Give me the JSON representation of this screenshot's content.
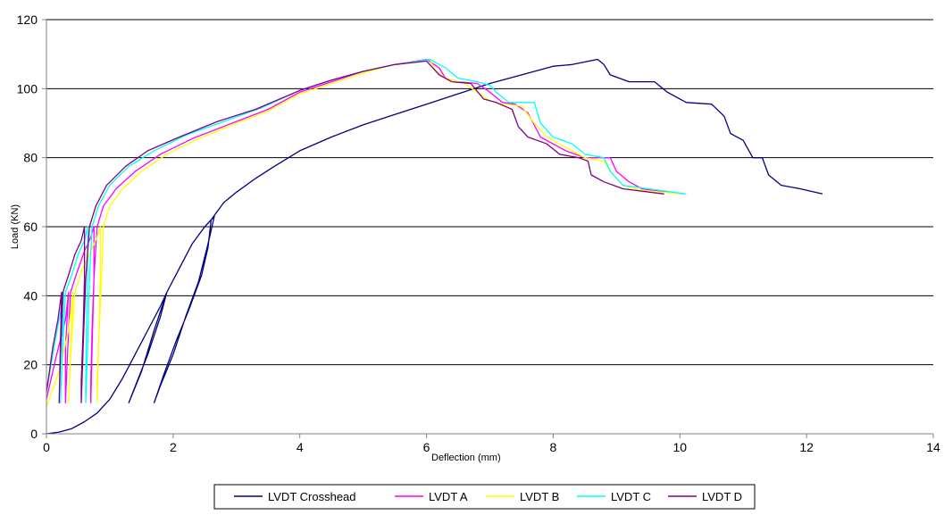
{
  "chart_data": {
    "type": "line",
    "title": "",
    "xlabel": "Deflection (mm)",
    "ylabel": "Load (KN)",
    "xlim": [
      0,
      14
    ],
    "ylim": [
      0,
      120
    ],
    "x_ticks": [
      0,
      2,
      4,
      6,
      8,
      10,
      12,
      14
    ],
    "y_ticks": [
      0,
      20,
      40,
      60,
      80,
      100,
      120
    ],
    "grid": "horizontal major gridlines",
    "legend_position": "bottom",
    "series": [
      {
        "name": "LVDT Crosshead",
        "color": "#000080",
        "points": [
          [
            0,
            0
          ],
          [
            0.2,
            0.5
          ],
          [
            0.4,
            1.5
          ],
          [
            0.6,
            3.5
          ],
          [
            0.8,
            6
          ],
          [
            1.0,
            10
          ],
          [
            1.2,
            16
          ],
          [
            1.4,
            23
          ],
          [
            1.6,
            30
          ],
          [
            1.8,
            37
          ],
          [
            1.9,
            41
          ],
          [
            1.7,
            30
          ],
          [
            1.5,
            18
          ],
          [
            1.3,
            9
          ],
          [
            1.45,
            16
          ],
          [
            1.6,
            23
          ],
          [
            1.8,
            34
          ],
          [
            1.9,
            41
          ],
          [
            2.1,
            48
          ],
          [
            2.3,
            55
          ],
          [
            2.5,
            60
          ],
          [
            2.65,
            63
          ],
          [
            2.55,
            55
          ],
          [
            2.4,
            44
          ],
          [
            2.2,
            34
          ],
          [
            2.0,
            23
          ],
          [
            1.8,
            14
          ],
          [
            1.7,
            9
          ],
          [
            1.85,
            17
          ],
          [
            2.05,
            27
          ],
          [
            2.25,
            36
          ],
          [
            2.45,
            46
          ],
          [
            2.55,
            54
          ],
          [
            2.6,
            62
          ],
          [
            2.8,
            67
          ],
          [
            3.0,
            70
          ],
          [
            3.3,
            74
          ],
          [
            3.6,
            77.5
          ],
          [
            4.0,
            82
          ],
          [
            4.5,
            86
          ],
          [
            5.0,
            89.5
          ],
          [
            5.5,
            92.5
          ],
          [
            6.0,
            95.5
          ],
          [
            6.5,
            98.5
          ],
          [
            7.0,
            101.5
          ],
          [
            7.5,
            104
          ],
          [
            8.0,
            106.5
          ],
          [
            8.3,
            107
          ],
          [
            8.7,
            108.5
          ],
          [
            8.8,
            107
          ],
          [
            8.9,
            104
          ],
          [
            9.2,
            102
          ],
          [
            9.6,
            102
          ],
          [
            9.8,
            99
          ],
          [
            10.1,
            96
          ],
          [
            10.5,
            95.5
          ],
          [
            10.7,
            92
          ],
          [
            10.8,
            87
          ],
          [
            11.0,
            85
          ],
          [
            11.15,
            80
          ],
          [
            11.3,
            80
          ],
          [
            11.4,
            75
          ],
          [
            11.6,
            72
          ],
          [
            11.9,
            71
          ],
          [
            12.25,
            69.5
          ]
        ]
      },
      {
        "name": "LVDT A",
        "color": "#FF00FF",
        "points": [
          [
            0,
            10
          ],
          [
            0.15,
            22
          ],
          [
            0.3,
            33
          ],
          [
            0.35,
            41
          ],
          [
            0.3,
            25
          ],
          [
            0.3,
            9
          ],
          [
            0.33,
            22
          ],
          [
            0.38,
            41
          ],
          [
            0.45,
            45
          ],
          [
            0.6,
            53
          ],
          [
            0.7,
            57
          ],
          [
            0.75,
            60
          ],
          [
            0.75,
            45
          ],
          [
            0.72,
            30
          ],
          [
            0.7,
            15
          ],
          [
            0.7,
            9
          ],
          [
            0.72,
            25
          ],
          [
            0.75,
            45
          ],
          [
            0.8,
            60
          ],
          [
            0.9,
            66
          ],
          [
            1.1,
            71
          ],
          [
            1.4,
            76
          ],
          [
            1.8,
            81
          ],
          [
            2.3,
            85.5
          ],
          [
            3.0,
            90.5
          ],
          [
            3.5,
            94
          ],
          [
            4.0,
            99
          ],
          [
            4.5,
            102
          ],
          [
            5.0,
            105
          ],
          [
            5.5,
            107
          ],
          [
            6.0,
            108.5
          ],
          [
            6.2,
            106
          ],
          [
            6.3,
            103
          ],
          [
            6.5,
            102
          ],
          [
            6.8,
            101.5
          ],
          [
            7.0,
            99
          ],
          [
            7.2,
            96
          ],
          [
            7.4,
            95.5
          ],
          [
            7.6,
            93
          ],
          [
            7.8,
            86
          ],
          [
            8.2,
            82
          ],
          [
            8.5,
            80
          ],
          [
            8.9,
            80
          ],
          [
            9.0,
            76
          ],
          [
            9.2,
            73
          ],
          [
            9.4,
            71
          ],
          [
            10.05,
            69.5
          ]
        ]
      },
      {
        "name": "LVDT B",
        "color": "#FFFF00",
        "points": [
          [
            0,
            8
          ],
          [
            0.2,
            18
          ],
          [
            0.35,
            30
          ],
          [
            0.42,
            41
          ],
          [
            0.38,
            25
          ],
          [
            0.35,
            9
          ],
          [
            0.38,
            22
          ],
          [
            0.45,
            41
          ],
          [
            0.55,
            47
          ],
          [
            0.7,
            53
          ],
          [
            0.8,
            57
          ],
          [
            0.85,
            60
          ],
          [
            0.85,
            45
          ],
          [
            0.83,
            30
          ],
          [
            0.8,
            15
          ],
          [
            0.8,
            9
          ],
          [
            0.82,
            25
          ],
          [
            0.87,
            45
          ],
          [
            0.9,
            60
          ],
          [
            1.0,
            66
          ],
          [
            1.2,
            71
          ],
          [
            1.5,
            76
          ],
          [
            1.9,
            81
          ],
          [
            2.4,
            85.5
          ],
          [
            3.0,
            90
          ],
          [
            3.5,
            93.5
          ],
          [
            4.0,
            98.5
          ],
          [
            4.5,
            101.5
          ],
          [
            5.0,
            104.5
          ],
          [
            5.5,
            107
          ],
          [
            6.05,
            108.5
          ],
          [
            6.15,
            105
          ],
          [
            6.3,
            103
          ],
          [
            6.6,
            101.5
          ],
          [
            6.8,
            99
          ],
          [
            7.0,
            96.5
          ],
          [
            7.2,
            95.5
          ],
          [
            7.5,
            95
          ],
          [
            7.7,
            90
          ],
          [
            7.9,
            86
          ],
          [
            8.3,
            82
          ],
          [
            8.5,
            80
          ],
          [
            8.8,
            79
          ],
          [
            8.95,
            75
          ],
          [
            9.1,
            72
          ],
          [
            9.4,
            70.5
          ],
          [
            10.05,
            69.5
          ]
        ]
      },
      {
        "name": "LVDT C",
        "color": "#00FFFF",
        "points": [
          [
            0,
            12
          ],
          [
            0.12,
            25
          ],
          [
            0.22,
            35
          ],
          [
            0.27,
            41
          ],
          [
            0.25,
            25
          ],
          [
            0.22,
            9
          ],
          [
            0.25,
            22
          ],
          [
            0.3,
            41
          ],
          [
            0.4,
            46
          ],
          [
            0.5,
            52
          ],
          [
            0.6,
            56
          ],
          [
            0.65,
            60
          ],
          [
            0.65,
            45
          ],
          [
            0.63,
            30
          ],
          [
            0.62,
            15
          ],
          [
            0.62,
            9
          ],
          [
            0.65,
            25
          ],
          [
            0.68,
            45
          ],
          [
            0.72,
            60
          ],
          [
            0.82,
            66
          ],
          [
            1.0,
            72
          ],
          [
            1.3,
            77.5
          ],
          [
            1.7,
            82
          ],
          [
            2.2,
            86.5
          ],
          [
            2.8,
            90.5
          ],
          [
            3.4,
            94.5
          ],
          [
            4.0,
            99.5
          ],
          [
            4.5,
            102.5
          ],
          [
            5.0,
            105
          ],
          [
            5.5,
            107
          ],
          [
            6.05,
            108.5
          ],
          [
            6.3,
            106
          ],
          [
            6.5,
            103
          ],
          [
            6.8,
            102
          ],
          [
            7.0,
            101
          ],
          [
            7.1,
            99
          ],
          [
            7.3,
            96
          ],
          [
            7.7,
            96
          ],
          [
            7.8,
            90
          ],
          [
            8.0,
            86
          ],
          [
            8.3,
            84
          ],
          [
            8.5,
            81
          ],
          [
            8.8,
            80
          ],
          [
            8.9,
            76
          ],
          [
            9.1,
            72
          ],
          [
            9.5,
            71
          ],
          [
            10.1,
            69.5
          ]
        ]
      },
      {
        "name": "LVDT D",
        "color": "#800080",
        "points": [
          [
            0,
            12
          ],
          [
            0.1,
            25
          ],
          [
            0.18,
            33
          ],
          [
            0.24,
            41
          ],
          [
            0.22,
            25
          ],
          [
            0.2,
            9
          ],
          [
            0.22,
            22
          ],
          [
            0.26,
            41
          ],
          [
            0.35,
            46
          ],
          [
            0.45,
            52
          ],
          [
            0.55,
            56
          ],
          [
            0.6,
            60
          ],
          [
            0.6,
            45
          ],
          [
            0.58,
            30
          ],
          [
            0.55,
            15
          ],
          [
            0.55,
            9
          ],
          [
            0.58,
            25
          ],
          [
            0.62,
            45
          ],
          [
            0.68,
            60
          ],
          [
            0.78,
            66
          ],
          [
            0.95,
            72
          ],
          [
            1.25,
            77.5
          ],
          [
            1.6,
            82
          ],
          [
            2.1,
            86
          ],
          [
            2.7,
            90.5
          ],
          [
            3.3,
            94
          ],
          [
            4.0,
            99.5
          ],
          [
            4.5,
            102.5
          ],
          [
            5.0,
            105
          ],
          [
            5.5,
            107
          ],
          [
            6.0,
            108
          ],
          [
            6.2,
            104
          ],
          [
            6.4,
            102
          ],
          [
            6.7,
            101.5
          ],
          [
            6.9,
            97
          ],
          [
            7.1,
            96
          ],
          [
            7.35,
            94
          ],
          [
            7.45,
            89
          ],
          [
            7.6,
            86
          ],
          [
            7.9,
            84
          ],
          [
            8.1,
            81
          ],
          [
            8.4,
            80
          ],
          [
            8.55,
            79
          ],
          [
            8.6,
            75
          ],
          [
            8.8,
            73
          ],
          [
            9.1,
            71
          ],
          [
            9.75,
            69.5
          ]
        ]
      }
    ]
  }
}
